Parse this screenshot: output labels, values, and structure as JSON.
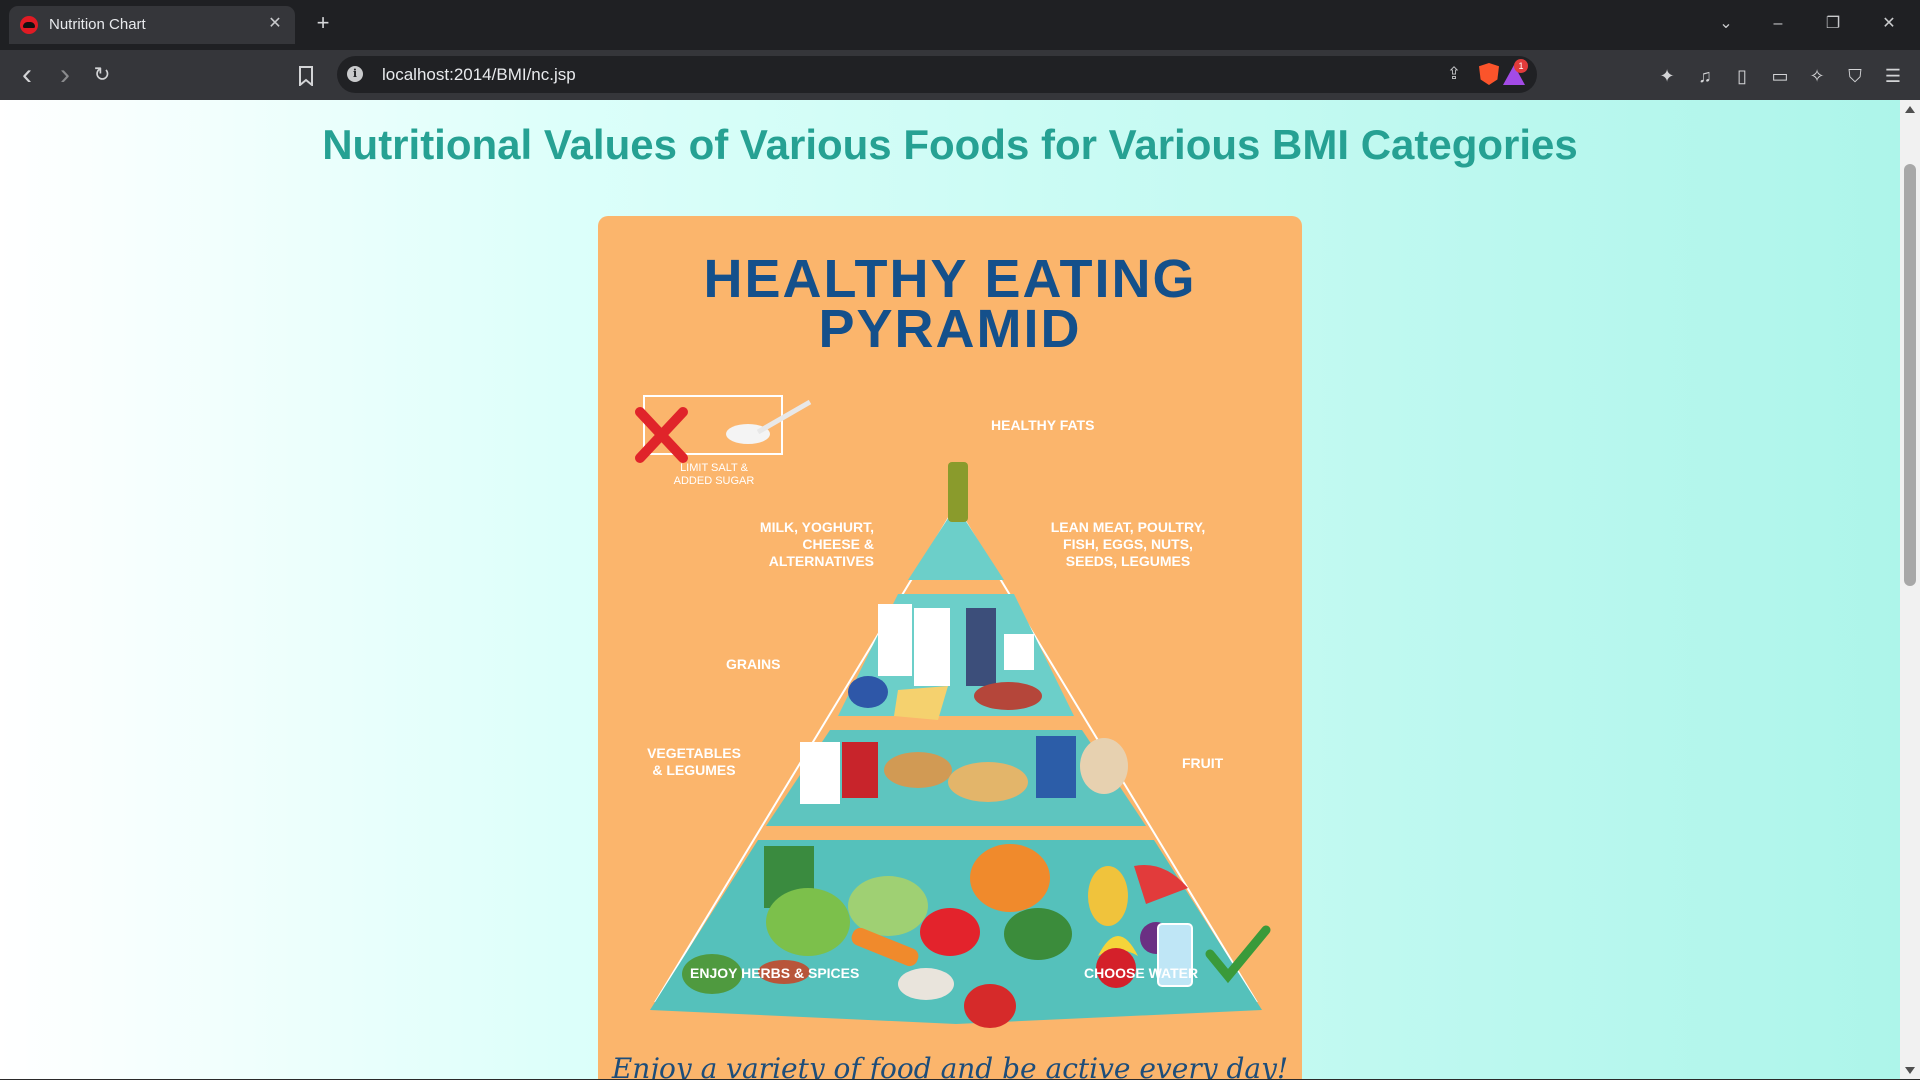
{
  "browser": {
    "tab": {
      "title": "Nutrition Chart",
      "close_glyph": "✕",
      "favicon": "redhat-icon"
    },
    "new_tab_glyph": "+",
    "window": {
      "tabs_menu": "⌄",
      "minimize": "–",
      "restore": "❐",
      "close": "✕"
    },
    "nav": {
      "back": "‹",
      "forward": "›",
      "reload": "↻",
      "bookmark": "☐"
    },
    "url": "localhost:2014/BMI/nc.jsp",
    "rewards_badge": "1",
    "extensions": [
      "puzzle-icon",
      "music-icon",
      "sidebar-icon",
      "wallet-icon",
      "leo-icon",
      "vpn-icon",
      "menu-icon"
    ]
  },
  "page": {
    "title": "Nutritional Values of Various Foods for Various BMI Categories",
    "poster": {
      "heading_line1": "HEALTHY EATING",
      "heading_line2": "PYRAMID",
      "labels": {
        "limit": "LIMIT SALT &\nADDED SUGAR",
        "fats": "HEALTHY FATS",
        "dairy": "MILK, YOGHURT,\nCHEESE &\nALTERNATIVES",
        "protein": "LEAN MEAT, POULTRY,\nFISH, EGGS, NUTS,\nSEEDS, LEGUMES",
        "grains": "GRAINS",
        "vegetables": "VEGETABLES\n& LEGUMES",
        "fruit": "FRUIT",
        "herbs": "ENJOY HERBS & SPICES",
        "water": "CHOOSE WATER"
      },
      "slogan": "Enjoy a variety of food and be active every day!"
    }
  }
}
